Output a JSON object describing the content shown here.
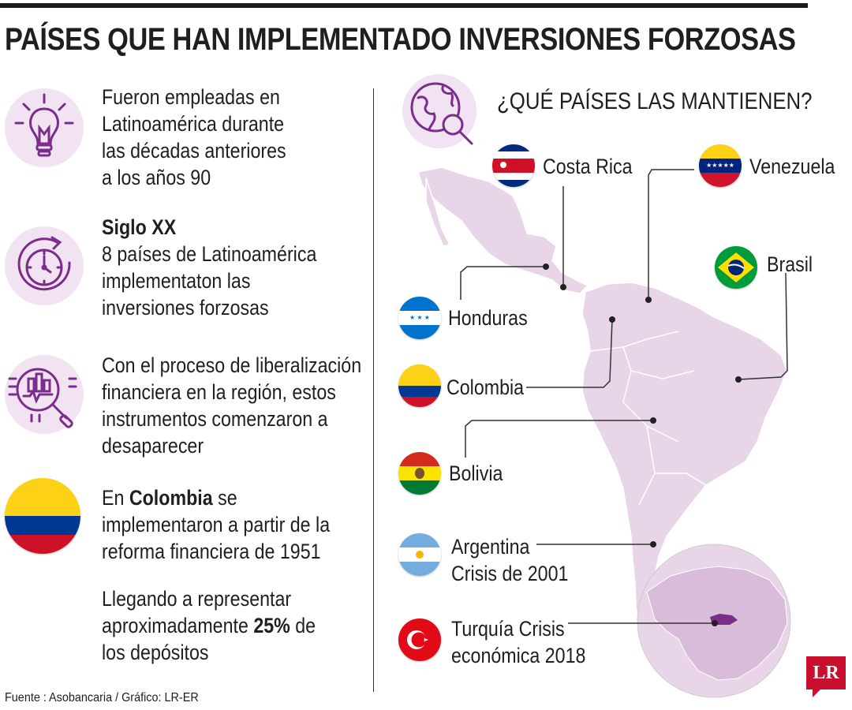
{
  "title": "PAÍSES QUE HAN IMPLEMENTADO INVERSIONES FORZOSAS",
  "left": {
    "block1": [
      "Fueron empleadas en",
      "Latinoamérica durante",
      "las décadas anteriores",
      "a los años 90"
    ],
    "block2_heading": "Siglo XX",
    "block2": [
      "8 países de Latinoamérica",
      "implementaton las",
      "inversiones forzosas"
    ],
    "block3": [
      "Con el proceso de liberalización",
      "financiera en la región, estos",
      "instrumentos comenzaron a",
      "desaparecer"
    ],
    "block4_pre": "En ",
    "block4_bold": "Colombia",
    "block4_post": " se",
    "block4": [
      "implementaron a partir de la",
      "reforma financiera de 1951"
    ],
    "block5": [
      "Llegando a representar"
    ],
    "block5_pre": "aproximadamente ",
    "block5_bold": "25%",
    "block5_post": " de",
    "block5_last": "los depósitos"
  },
  "right": {
    "map_title": "¿QUÉ PAÍSES LAS MANTIENEN?",
    "countries": {
      "costa_rica": "Costa Rica",
      "venezuela": "Venezuela",
      "brasil": "Brasil",
      "honduras": "Honduras",
      "colombia": "Colombia",
      "bolivia": "Bolivia",
      "argentina": "Argentina",
      "argentina_note": "Crisis de 2001",
      "turquia": "Turquía Crisis",
      "turquia_note": "económica 2018"
    }
  },
  "source": "Fuente : Asobancaria / Gráfico: LR-ER",
  "logo": "LR",
  "colors": {
    "accent": "#7b2d8b",
    "map_fill": "#e8d6e8",
    "map_stroke": "#ffffff",
    "turkey": "#7b2d8b"
  }
}
